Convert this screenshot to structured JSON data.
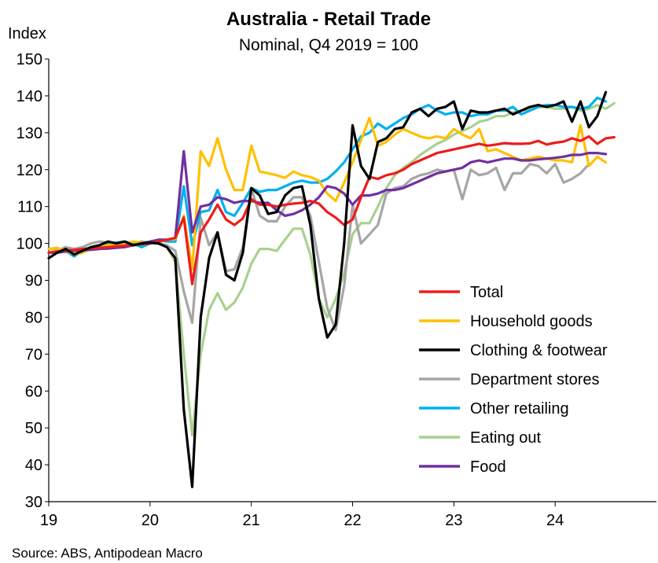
{
  "chart_data": {
    "type": "line",
    "title": "Australia - Retail Trade",
    "subtitle": "Nominal, Q4 2019 = 100",
    "ylabel": "Index",
    "xlabel": "",
    "ylim": [
      30,
      150
    ],
    "yticks": [
      "30",
      "40",
      "50",
      "60",
      "70",
      "80",
      "90",
      "100",
      "110",
      "120",
      "130",
      "140",
      "150"
    ],
    "xlim": [
      2019,
      2025
    ],
    "xtick_values": [
      2019,
      2020,
      2021,
      2022,
      2023,
      2024
    ],
    "xtick_labels": [
      "19",
      "20",
      "21",
      "22",
      "23",
      "24"
    ],
    "x_start": "2019-01",
    "x_frequency": "monthly",
    "grid": false,
    "legend_position": "lower-right",
    "source": "Source: ABS, Antipodean Macro",
    "series": [
      {
        "name": "Total",
        "color": "#ee1c1c",
        "values": [
          97.5,
          97.8,
          98.1,
          98.2,
          98.5,
          98.7,
          98.8,
          99.0,
          99.2,
          99.4,
          99.6,
          99.8,
          100.0,
          100.5,
          101.0,
          101.5,
          107.0,
          89.0,
          103.0,
          106.5,
          110.5,
          106.5,
          105.0,
          106.8,
          112.0,
          110.5,
          110.5,
          110.0,
          110.5,
          110.8,
          111.0,
          111.5,
          110.8,
          108.5,
          107.0,
          105.0,
          106.5,
          112.5,
          118.0,
          117.5,
          118.5,
          119.0,
          120.0,
          121.5,
          122.5,
          123.5,
          124.5,
          125.0,
          125.5,
          126.0,
          126.5,
          127.0,
          126.5,
          126.8,
          127.2,
          127.0,
          127.0,
          127.1,
          127.8,
          126.8,
          127.3,
          127.6,
          128.5,
          127.8,
          129.0,
          127.0,
          128.5,
          128.8
        ]
      },
      {
        "name": "Household goods",
        "color": "#ffc000",
        "values": [
          98.5,
          98.8,
          98.0,
          97.0,
          97.5,
          98.5,
          99.0,
          99.5,
          99.8,
          100.0,
          100.5,
          100.2,
          100.0,
          100.5,
          101.0,
          101.2,
          107.5,
          93.0,
          125.0,
          121.0,
          128.5,
          120.0,
          114.5,
          114.5,
          126.5,
          119.5,
          119.0,
          118.5,
          117.8,
          119.5,
          118.5,
          118.0,
          117.0,
          113.5,
          111.5,
          116.5,
          122.0,
          128.0,
          134.0,
          126.5,
          127.5,
          129.5,
          131.0,
          130.0,
          129.0,
          128.5,
          129.0,
          128.5,
          131.0,
          129.5,
          128.5,
          131.0,
          125.0,
          125.5,
          124.5,
          123.5,
          122.5,
          123.0,
          123.5,
          123.0,
          122.5,
          122.5,
          122.0,
          132.0,
          121.0,
          123.5,
          122.0
        ]
      },
      {
        "name": "Clothing & footwear",
        "color": "#000000",
        "values": [
          96.0,
          97.5,
          98.5,
          97.0,
          98.0,
          99.0,
          99.5,
          100.5,
          100.0,
          100.5,
          99.5,
          100.0,
          100.2,
          100.0,
          99.0,
          96.0,
          55.0,
          34.0,
          80.0,
          96.0,
          103.0,
          91.5,
          90.0,
          97.5,
          115.0,
          113.0,
          108.0,
          108.5,
          113.0,
          115.0,
          115.5,
          105.0,
          85.0,
          74.5,
          78.0,
          100.0,
          132.0,
          121.0,
          117.5,
          127.5,
          128.5,
          131.0,
          131.5,
          135.5,
          136.5,
          134.5,
          136.5,
          137.0,
          138.5,
          131.0,
          136.0,
          135.5,
          135.5,
          136.0,
          136.5,
          135.0,
          136.0,
          137.0,
          137.5,
          137.0,
          137.5,
          138.5,
          133.0,
          138.5,
          131.5,
          134.5,
          141.0
        ]
      },
      {
        "name": "Department stores",
        "color": "#a6a6a6",
        "values": [
          97.5,
          98.0,
          99.0,
          98.5,
          99.0,
          100.0,
          100.5,
          100.2,
          100.0,
          99.5,
          100.0,
          100.5,
          100.2,
          100.0,
          99.5,
          98.0,
          87.0,
          78.5,
          107.0,
          99.5,
          103.0,
          92.5,
          93.0,
          99.0,
          115.0,
          107.5,
          106.0,
          106.0,
          110.0,
          112.5,
          112.5,
          107.5,
          95.0,
          82.5,
          76.5,
          88.5,
          110.5,
          100.0,
          102.5,
          105.0,
          113.5,
          115.0,
          115.5,
          117.5,
          118.5,
          119.0,
          120.0,
          119.5,
          120.0,
          112.0,
          120.0,
          118.5,
          119.0,
          120.5,
          114.5,
          119.0,
          119.0,
          121.5,
          121.0,
          119.0,
          121.5,
          116.5,
          117.5,
          119.0,
          121.5
        ]
      },
      {
        "name": "Other retailing",
        "color": "#00b0f0",
        "values": [
          97.5,
          97.5,
          98.0,
          96.5,
          98.0,
          99.0,
          99.5,
          100.0,
          100.2,
          100.5,
          100.0,
          99.0,
          100.0,
          101.0,
          100.5,
          100.5,
          115.5,
          99.5,
          108.5,
          109.0,
          114.5,
          108.5,
          107.5,
          111.0,
          115.0,
          114.0,
          114.5,
          114.5,
          115.5,
          116.5,
          117.0,
          116.5,
          116.5,
          117.5,
          119.5,
          122.0,
          125.5,
          129.0,
          130.0,
          132.5,
          131.0,
          132.5,
          134.0,
          135.0,
          136.5,
          137.5,
          136.0,
          135.0,
          135.5,
          135.5,
          134.5,
          135.0,
          135.0,
          136.0,
          136.0,
          137.0,
          135.0,
          136.0,
          137.0,
          137.5,
          137.5,
          137.0,
          137.0,
          136.5,
          137.0,
          139.5,
          138.5
        ]
      },
      {
        "name": "Eating out",
        "color": "#a9d18e",
        "values": [
          98.5,
          98.5,
          98.0,
          98.0,
          98.5,
          98.5,
          99.0,
          99.0,
          99.5,
          99.5,
          99.5,
          99.5,
          100.0,
          100.5,
          99.0,
          95.0,
          70.0,
          48.0,
          70.0,
          82.0,
          86.5,
          82.0,
          84.0,
          88.0,
          94.5,
          98.5,
          98.5,
          98.0,
          101.0,
          104.0,
          104.0,
          97.0,
          85.0,
          80.0,
          85.0,
          92.0,
          102.5,
          105.5,
          105.5,
          110.0,
          115.0,
          118.5,
          120.5,
          122.0,
          124.0,
          125.5,
          127.0,
          128.0,
          129.5,
          130.5,
          131.5,
          133.0,
          133.5,
          134.5,
          134.5,
          135.5,
          136.0,
          136.5,
          137.0,
          137.0,
          136.5,
          136.5,
          137.0,
          136.0,
          136.5,
          137.5,
          136.5,
          138.0
        ]
      },
      {
        "name": "Food",
        "color": "#7030a0",
        "values": [
          97.5,
          97.5,
          97.8,
          98.0,
          98.2,
          98.3,
          98.5,
          98.6,
          98.8,
          99.0,
          99.5,
          100.0,
          100.5,
          101.0,
          101.0,
          101.5,
          125.0,
          103.0,
          110.0,
          110.5,
          112.5,
          112.0,
          111.0,
          111.5,
          111.5,
          111.0,
          111.0,
          109.0,
          107.5,
          108.0,
          109.0,
          110.5,
          112.5,
          115.5,
          115.0,
          113.5,
          110.5,
          113.0,
          113.0,
          113.5,
          114.5,
          114.5,
          115.0,
          116.0,
          117.0,
          118.0,
          119.0,
          119.5,
          120.0,
          120.5,
          122.0,
          122.5,
          122.0,
          122.5,
          123.0,
          123.0,
          122.5,
          122.5,
          122.8,
          123.0,
          123.2,
          123.5,
          124.0,
          124.0,
          124.5,
          124.5,
          124.2
        ]
      }
    ]
  }
}
